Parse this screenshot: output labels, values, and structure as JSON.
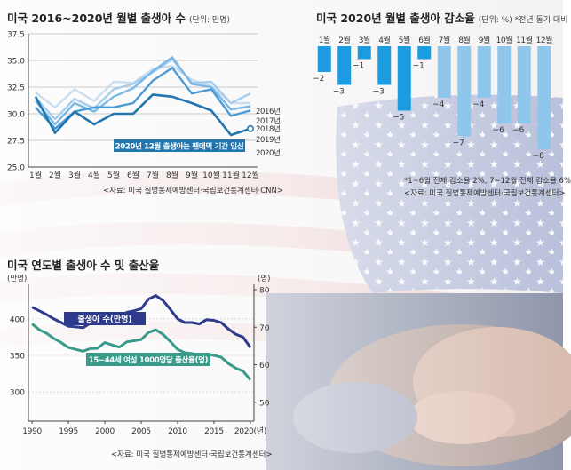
{
  "chart_data": [
    {
      "type": "line",
      "title": "미국 2016~2020년 월별 출생아 수",
      "unit_note": "(단위: 만명)",
      "categories": [
        "1월",
        "2월",
        "3월",
        "4월",
        "5월",
        "6월",
        "7월",
        "8월",
        "9월",
        "10월",
        "11월",
        "12월"
      ],
      "ylim": [
        25.0,
        37.5
      ],
      "yticks": [
        "37.5",
        "35.0",
        "32.5",
        "30.0",
        "27.5",
        "25.0"
      ],
      "grid": true,
      "series": [
        {
          "name": "2016년",
          "color": "#c9def0",
          "values": [
            32.0,
            30.6,
            32.3,
            31.2,
            33.0,
            32.9,
            34.2,
            34.5,
            33.2,
            32.6,
            31.0,
            31.0
          ]
        },
        {
          "name": "2017년",
          "color": "#a7cdec",
          "values": [
            31.5,
            29.5,
            31.4,
            30.5,
            32.3,
            32.8,
            33.9,
            35.1,
            32.9,
            33.0,
            31.0,
            31.9
          ]
        },
        {
          "name": "2018년",
          "color": "#7ab8e6",
          "values": [
            31.2,
            29.0,
            31.0,
            30.2,
            31.6,
            32.4,
            34.0,
            35.3,
            32.8,
            32.5,
            30.4,
            30.7
          ]
        },
        {
          "name": "2019년",
          "color": "#4a9ad4",
          "values": [
            30.6,
            28.6,
            30.2,
            30.6,
            30.6,
            31.0,
            33.1,
            34.3,
            31.9,
            32.3,
            29.8,
            30.3
          ]
        },
        {
          "name": "2020년",
          "color": "#2176ae",
          "values": [
            31.6,
            28.2,
            30.2,
            29.0,
            30.0,
            30.0,
            31.8,
            31.6,
            31.0,
            30.3,
            28.0,
            28.6
          ]
        }
      ],
      "annotation": "2020년 12월 출생아는 팬데믹 기간 임신",
      "source": "<자료: 미국 질병통제예방센터·국립보건통계센터·CNN>"
    },
    {
      "type": "bar",
      "title": "미국 2020년 월별 출생아 감소율",
      "unit_note": "(단위: %) *전년 동기 대비",
      "categories": [
        "1월",
        "2월",
        "3월",
        "4월",
        "5월",
        "6월",
        "7월",
        "8월",
        "9월",
        "10월",
        "11월",
        "12월"
      ],
      "values": [
        -2,
        -3,
        -1,
        -3,
        -5,
        -1,
        -4,
        -7,
        -4,
        -6,
        -6,
        -8
      ],
      "value_labels": [
        "−2",
        "−3",
        "−1",
        "−3",
        "−5",
        "−1",
        "−4",
        "−7",
        "−4",
        "−6",
        "−6",
        "−8"
      ],
      "colors": [
        "#1b9ce0",
        "#1b9ce0",
        "#1b9ce0",
        "#1b9ce0",
        "#1b9ce0",
        "#1b9ce0",
        "#8fc6ec",
        "#8fc6ec",
        "#8fc6ec",
        "#8fc6ec",
        "#8fc6ec",
        "#8fc6ec"
      ],
      "footnote": "*1~6월 전체 감소율 2%, 7~12월 전체 감소율 6%",
      "source": "<자료: 미국 질병통제예방센터·국립보건통계센터>"
    },
    {
      "type": "line",
      "title": "미국 연도별 출생아 수 및 출산율",
      "y_left_label": "(만명)",
      "y_right_label": "(명)",
      "y_left_ticks": [
        "400",
        "350",
        "300"
      ],
      "y_right_ticks": [
        "80",
        "70",
        "60",
        "50"
      ],
      "ylim_left": [
        260,
        440
      ],
      "ylim_right": [
        45,
        80
      ],
      "x_ticks": [
        "1990",
        "1995",
        "2000",
        "2005",
        "2010",
        "2015",
        "2020(년)"
      ],
      "series": [
        {
          "name": "출생아 수(만명)",
          "axis": "left",
          "color": "#2e3a8c",
          "x": [
            1990,
            1991,
            1992,
            1993,
            1994,
            1995,
            1996,
            1997,
            1998,
            1999,
            2000,
            2001,
            2002,
            2003,
            2004,
            2005,
            2006,
            2007,
            2008,
            2009,
            2010,
            2011,
            2012,
            2013,
            2014,
            2015,
            2016,
            2017,
            2018,
            2019,
            2020
          ],
          "values": [
            416,
            411,
            406,
            400,
            395,
            390,
            389,
            388,
            394,
            396,
            406,
            403,
            402,
            409,
            411,
            414,
            427,
            432,
            425,
            413,
            400,
            395,
            395,
            393,
            399,
            398,
            395,
            386,
            379,
            375,
            361
          ]
        },
        {
          "name": "15~44세 여성 1000명당 출산율(명)",
          "axis": "right",
          "color": "#3a9a8a",
          "x": [
            1990,
            1991,
            1992,
            1993,
            1994,
            1995,
            1996,
            1997,
            1998,
            1999,
            2000,
            2001,
            2002,
            2003,
            2004,
            2005,
            2006,
            2007,
            2008,
            2009,
            2010,
            2011,
            2012,
            2013,
            2014,
            2015,
            2016,
            2017,
            2018,
            2019,
            2020
          ],
          "values": [
            70.9,
            69.3,
            68.4,
            67.0,
            65.9,
            64.6,
            64.1,
            63.6,
            64.3,
            64.4,
            65.9,
            65.3,
            64.7,
            66.1,
            66.4,
            66.7,
            68.6,
            69.3,
            68.1,
            66.2,
            64.1,
            63.2,
            63.0,
            62.5,
            62.9,
            62.5,
            62.0,
            60.3,
            59.1,
            58.3,
            56.0
          ]
        }
      ],
      "source": "<자료: 미국 질병통제예방센터·국립보건통계센터>"
    }
  ]
}
